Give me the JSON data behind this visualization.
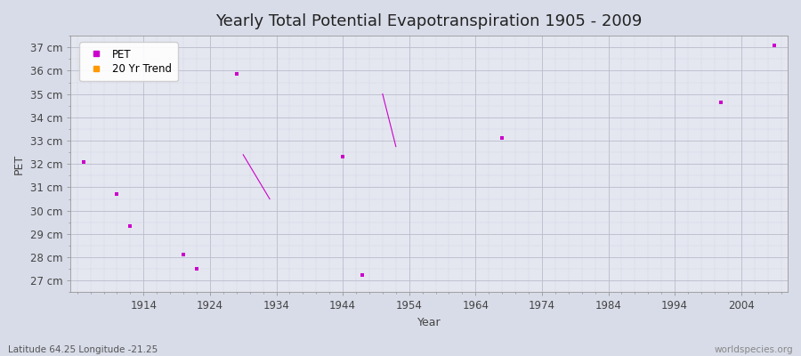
{
  "title": "Yearly Total Potential Evapotranspiration 1905 - 2009",
  "xlabel": "Year",
  "ylabel": "PET",
  "bottom_left_label": "Latitude 64.25 Longitude -21.25",
  "bottom_right_label": "worldspecies.org",
  "background_color": "#d8dce8",
  "plot_bg_color": "#e4e7f0",
  "ylim": [
    26.5,
    37.5
  ],
  "xlim": [
    1903,
    2011
  ],
  "ytick_labels": [
    "27 cm",
    "28 cm",
    "29 cm",
    "30 cm",
    "31 cm",
    "32 cm",
    "33 cm",
    "34 cm",
    "35 cm",
    "36 cm",
    "37 cm"
  ],
  "ytick_values": [
    27,
    28,
    29,
    30,
    31,
    32,
    33,
    34,
    35,
    36,
    37
  ],
  "xtick_values": [
    1914,
    1924,
    1934,
    1944,
    1954,
    1964,
    1974,
    1984,
    1994,
    2004
  ],
  "pet_color": "#cc00cc",
  "trend_color": "#ff9900",
  "pet_data": [
    [
      1905,
      32.1
    ],
    [
      1910,
      30.7
    ],
    [
      1912,
      29.35
    ],
    [
      1920,
      28.1
    ],
    [
      1922,
      27.5
    ],
    [
      1928,
      35.85
    ],
    [
      1944,
      32.3
    ],
    [
      1947,
      27.25
    ],
    [
      1968,
      33.1
    ],
    [
      2001,
      34.65
    ],
    [
      2009,
      37.1
    ]
  ],
  "trend_segments": [
    [
      [
        1929,
        32.4
      ],
      [
        1933,
        30.5
      ]
    ],
    [
      [
        1950,
        35.0
      ],
      [
        1952,
        32.75
      ]
    ]
  ],
  "marker_size": 3,
  "title_fontsize": 13,
  "axis_fontsize": 9,
  "tick_fontsize": 8.5,
  "legend_fontsize": 8.5
}
